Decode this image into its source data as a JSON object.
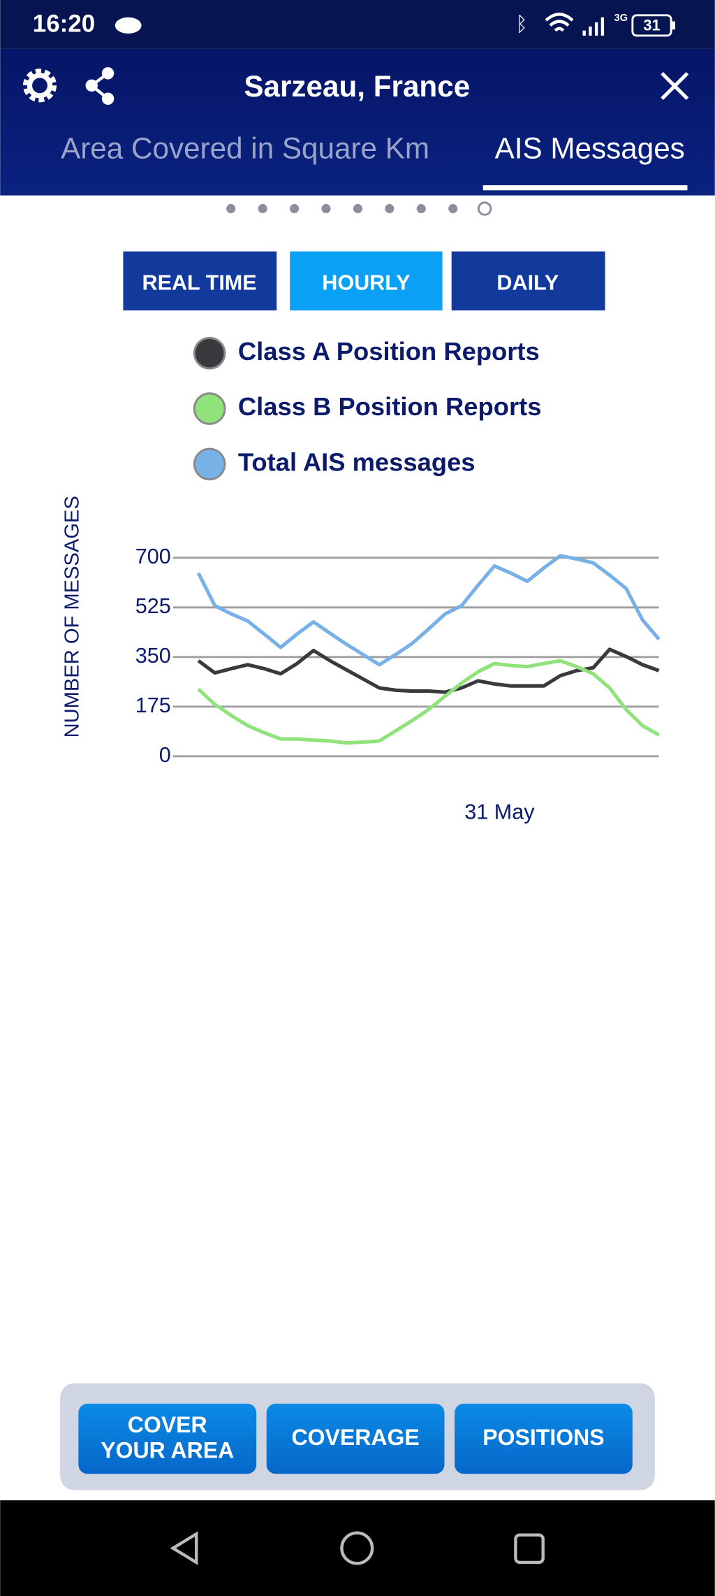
{
  "status_bar": {
    "time": "16:20",
    "network": "3G",
    "battery": "31"
  },
  "header": {
    "title": "Sarzeau, France"
  },
  "tabs": [
    "Area Covered in Square Km",
    "AIS Messages"
  ],
  "range_buttons": [
    "REAL TIME",
    "HOURLY",
    "DAILY"
  ],
  "chart_data": {
    "type": "line",
    "y_label": "NUMBER OF MESSAGES",
    "categories": [
      null,
      null,
      null,
      null,
      null,
      null,
      null,
      null,
      null,
      null,
      null,
      null,
      null,
      null,
      null,
      null,
      null,
      null,
      "31 May",
      null,
      null,
      null,
      null,
      null,
      null,
      null,
      null,
      null,
      null
    ],
    "series": [
      {
        "name": "Class A Position Reports",
        "color": "#3a3a3e",
        "values": [
          337,
          294,
          309,
          323,
          309,
          291,
          327,
          373,
          337,
          305,
          273,
          241,
          233,
          230,
          230,
          226,
          241,
          266,
          255,
          248,
          248,
          248,
          284,
          302,
          312,
          377,
          352,
          323,
          302
        ]
      },
      {
        "name": "Class B Position Reports",
        "color": "#8fe37a",
        "values": [
          237,
          183,
          144,
          108,
          83,
          61,
          61,
          57,
          54,
          47,
          50,
          54,
          90,
          126,
          165,
          212,
          258,
          298,
          327,
          320,
          316,
          327,
          337,
          316,
          291,
          241,
          165,
          108,
          75
        ]
      },
      {
        "name": "Total AIS messages",
        "color": "#78b0e8",
        "values": [
          646,
          531,
          502,
          477,
          431,
          384,
          431,
          474,
          434,
          395,
          359,
          323,
          359,
          398,
          449,
          502,
          531,
          603,
          671,
          646,
          617,
          664,
          707,
          696,
          682,
          639,
          592,
          481,
          413
        ]
      }
    ],
    "ylim": [
      0,
      700
    ],
    "yticks": [
      0,
      175,
      350,
      525,
      700
    ],
    "grid": true
  },
  "bottom_buttons": [
    [
      "COVER",
      "YOUR AREA"
    ],
    [
      "COVERAGE"
    ],
    [
      "POSITIONS"
    ]
  ]
}
